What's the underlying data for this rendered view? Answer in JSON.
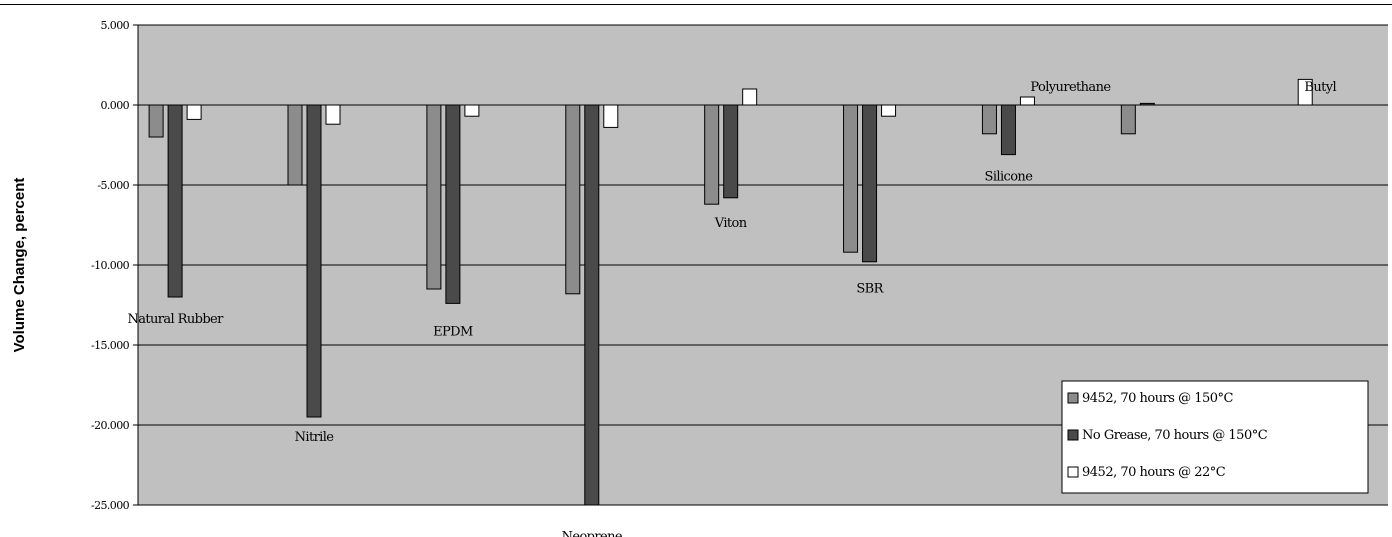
{
  "chart_data": {
    "type": "bar",
    "title": "",
    "xlabel": "",
    "ylabel": "Volume Change, percent",
    "ylim": [
      -25,
      5
    ],
    "yticks": [
      5,
      0,
      -5,
      -10,
      -15,
      -20,
      -25
    ],
    "ytick_labels": [
      "5.000",
      "0.000",
      "-5.000",
      "-10.000",
      "-15.000",
      "-20.000",
      "-25.000"
    ],
    "grid": true,
    "legend_position": "bottom-right",
    "categories": [
      "Natural Rubber",
      "Nitrile",
      "EPDM",
      "Neoprene",
      "Viton",
      "SBR",
      "Silicone",
      "Polyurethane",
      "Butyl"
    ],
    "series": [
      {
        "name": "9452, 70 hours @ 150°C",
        "color": "#8c8c8c",
        "values": [
          -2.0,
          -5.0,
          -11.5,
          -11.8,
          -6.2,
          -9.2,
          -1.8,
          -1.8,
          null
        ]
      },
      {
        "name": "No Grease, 70 hours @ 150°C",
        "color": "#4a4a4a",
        "values": [
          -12.0,
          -19.5,
          -12.4,
          -25.0,
          -5.8,
          -9.8,
          -3.1,
          0.1,
          null
        ]
      },
      {
        "name": "9452, 70 hours @ 22°C",
        "color": "#ffffff",
        "values": [
          -0.9,
          -1.2,
          -0.7,
          -1.4,
          1.0,
          -0.7,
          0.5,
          null,
          1.6
        ]
      }
    ],
    "annotations": [
      {
        "text": "Natural Rubber",
        "x": "Natural Rubber",
        "y": -13.3
      },
      {
        "text": "Nitrile",
        "x": "Nitrile",
        "y": -20.7
      },
      {
        "text": "EPDM",
        "x": "EPDM",
        "y": -14.1
      },
      {
        "text": "Neoprene",
        "x": "Neoprene",
        "y": -26.9
      },
      {
        "text": "Viton",
        "x": "Viton",
        "y": -7.3
      },
      {
        "text": "SBR",
        "x": "SBR",
        "y": -11.4
      },
      {
        "text": "Silicone",
        "x": "Silicone",
        "y": -4.4
      },
      {
        "text": "Polyurethane",
        "x": "Silicone",
        "y": 1.2
      },
      {
        "text": "Butyl",
        "x": "Butyl",
        "y": 1.2
      }
    ]
  }
}
